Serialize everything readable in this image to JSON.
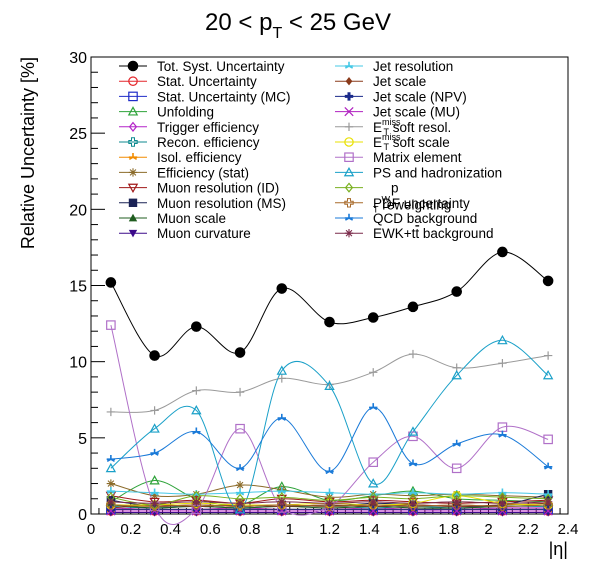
{
  "chart_data": {
    "type": "line",
    "title_main": "20 < p",
    "title_sub": "T",
    "title_rest": " < 25 GeV",
    "xlabel": "|η|",
    "ylabel": "Relative Uncertainty [%]",
    "xlim": [
      0,
      2.4
    ],
    "ylim": [
      0,
      30
    ],
    "x_ticks": [
      "0",
      "0.2",
      "0.4",
      "0.6",
      "0.8",
      "1",
      "1.2",
      "1.4",
      "1.6",
      "1.8",
      "2",
      "2.2",
      "2.4"
    ],
    "y_ticks": [
      "0",
      "5",
      "10",
      "15",
      "20",
      "25",
      "30"
    ],
    "x": [
      0.1,
      0.32,
      0.53,
      0.75,
      0.96,
      1.2,
      1.42,
      1.62,
      1.84,
      2.07,
      2.3
    ],
    "series": [
      {
        "name": "Tot. Syst. Uncertainty",
        "color": "#000000",
        "marker": "filled-circle",
        "values": [
          15.2,
          10.4,
          12.3,
          10.6,
          14.8,
          12.6,
          12.9,
          13.6,
          14.6,
          17.2,
          15.3
        ]
      },
      {
        "name": "Stat. Uncertainty",
        "color": "#e4252a",
        "marker": "open-circle",
        "values": [
          0.2,
          0.2,
          0.2,
          0.2,
          0.2,
          0.2,
          0.2,
          0.2,
          0.2,
          0.2,
          0.2
        ]
      },
      {
        "name": "Stat. Uncertainty (MC)",
        "color": "#1f2cc8",
        "marker": "open-square",
        "values": [
          0.3,
          0.3,
          0.3,
          0.3,
          0.3,
          0.3,
          0.3,
          0.3,
          0.3,
          0.3,
          0.3
        ]
      },
      {
        "name": "Unfolding",
        "color": "#2ea33a",
        "marker": "open-triangle",
        "values": [
          0.8,
          2.2,
          1.0,
          0.6,
          1.8,
          0.9,
          1.2,
          1.5,
          1.0,
          0.9,
          0.8
        ]
      },
      {
        "name": "Trigger efficiency",
        "color": "#b424c8",
        "marker": "open-diamond",
        "values": [
          0.4,
          0.3,
          0.3,
          0.4,
          0.3,
          0.3,
          0.4,
          0.3,
          0.3,
          0.4,
          0.4
        ]
      },
      {
        "name": "Recon. efficiency",
        "color": "#0e8a8f",
        "marker": "open-cross",
        "values": [
          0.5,
          0.4,
          0.5,
          0.4,
          0.5,
          0.5,
          0.4,
          0.5,
          0.4,
          0.5,
          0.5
        ]
      },
      {
        "name": "Isol. efficiency",
        "color": "#f28c00",
        "marker": "tri-star",
        "values": [
          0.3,
          0.3,
          0.3,
          0.3,
          0.3,
          0.3,
          0.3,
          0.3,
          0.3,
          0.3,
          0.3
        ]
      },
      {
        "name": "Efficiency (stat)",
        "color": "#8b6b2a",
        "marker": "asterisk",
        "values": [
          2.0,
          1.2,
          1.3,
          1.9,
          1.6,
          1.1,
          1.3,
          1.2,
          1.3,
          1.2,
          1.1
        ]
      },
      {
        "name": "Muon resolution (ID)",
        "color": "#a01818",
        "marker": "open-down-triangle",
        "values": [
          1.2,
          0.8,
          0.9,
          0.7,
          1.0,
          0.8,
          0.9,
          0.8,
          0.7,
          0.8,
          0.9
        ]
      },
      {
        "name": "Muon resolution (MS)",
        "color": "#1a2255",
        "marker": "filled-square",
        "values": [
          0.9,
          0.5,
          0.6,
          0.5,
          0.6,
          0.5,
          0.7,
          0.6,
          0.5,
          0.6,
          1.3
        ]
      },
      {
        "name": "Muon scale",
        "color": "#1f5c1f",
        "marker": "filled-triangle",
        "values": [
          0.6,
          0.4,
          0.5,
          0.4,
          0.5,
          0.4,
          0.5,
          0.4,
          0.4,
          0.5,
          0.6
        ]
      },
      {
        "name": "Muon curvature",
        "color": "#3b0a8a",
        "marker": "filled-down-triangle",
        "values": [
          0.1,
          0.1,
          0.1,
          0.1,
          0.1,
          0.1,
          0.1,
          0.1,
          0.1,
          0.1,
          0.1
        ]
      },
      {
        "name": "Jet resolution",
        "color": "#45c8e6",
        "marker": "tri-star",
        "values": [
          1.5,
          1.4,
          1.3,
          1.4,
          1.5,
          1.4,
          1.3,
          1.4,
          1.3,
          1.4,
          1.3
        ]
      },
      {
        "name": "Jet scale",
        "color": "#8a3a1a",
        "marker": "filled-diamond",
        "values": [
          0.4,
          0.6,
          0.5,
          0.6,
          0.5,
          0.6,
          0.5,
          0.6,
          0.5,
          0.6,
          0.7
        ]
      },
      {
        "name": "Jet scale (NPV)",
        "color": "#1a2a8a",
        "marker": "filled-cross",
        "values": [
          0.3,
          0.3,
          0.3,
          0.3,
          0.3,
          0.3,
          0.3,
          0.3,
          0.3,
          0.3,
          0.3
        ]
      },
      {
        "name": "Jet scale (MU)",
        "color": "#b020c0",
        "marker": "x-cross",
        "values": [
          0.2,
          0.2,
          0.2,
          0.2,
          0.2,
          0.2,
          0.2,
          0.2,
          0.2,
          0.2,
          0.2
        ]
      },
      {
        "name": "soft resol.",
        "color": "#9a9a9a",
        "marker": "plus",
        "values": [
          6.7,
          6.8,
          8.1,
          8.0,
          8.9,
          8.5,
          9.3,
          10.5,
          9.6,
          9.9,
          10.4
        ]
      },
      {
        "name": "soft scale",
        "color": "#e8e000",
        "marker": "open-circle",
        "values": [
          0.6,
          0.6,
          0.7,
          0.6,
          0.6,
          0.7,
          0.6,
          0.7,
          1.2,
          0.7,
          0.6
        ]
      },
      {
        "name": "Matrix element",
        "color": "#b070c8",
        "marker": "open-square",
        "values": [
          12.4,
          0.5,
          0.3,
          5.6,
          0.4,
          0.5,
          3.4,
          5.1,
          3.0,
          5.7,
          4.9
        ]
      },
      {
        "name": "PS and hadronization",
        "color": "#1aa0c8",
        "marker": "open-triangle",
        "values": [
          3.0,
          5.6,
          6.8,
          0.3,
          9.4,
          8.4,
          2.0,
          5.4,
          9.1,
          11.4,
          9.1
        ]
      },
      {
        "name": "reweighting",
        "color": "#7ab020",
        "marker": "open-diamond",
        "values": [
          1.1,
          0.6,
          1.2,
          1.0,
          1.1,
          0.9,
          1.1,
          1.0,
          1.2,
          1.1,
          1.0
        ]
      },
      {
        "name": "PDF uncertainty",
        "color": "#a86a2a",
        "marker": "open-cross",
        "values": [
          0.6,
          0.5,
          0.6,
          0.5,
          0.6,
          0.5,
          0.6,
          0.5,
          0.6,
          0.5,
          0.6
        ]
      },
      {
        "name": "QCD background",
        "color": "#1a7ad8",
        "marker": "tri-star",
        "values": [
          3.6,
          4.0,
          5.4,
          3.0,
          6.3,
          2.8,
          7.0,
          3.3,
          4.6,
          5.2,
          3.1
        ]
      },
      {
        "name": "background",
        "color": "#7a2a4a",
        "marker": "asterisk",
        "values": [
          0.8,
          0.7,
          0.8,
          0.7,
          0.8,
          0.7,
          0.8,
          0.7,
          0.8,
          0.7,
          0.8
        ]
      }
    ],
    "legend": {
      "placement": "top",
      "entries": [
        {
          "parts": [
            {
              "t": "Tot. Syst. Uncertainty"
            }
          ]
        },
        {
          "parts": [
            {
              "t": "Stat. Uncertainty"
            }
          ]
        },
        {
          "parts": [
            {
              "t": "Stat. Uncertainty (MC)"
            }
          ]
        },
        {
          "parts": [
            {
              "t": "Unfolding"
            }
          ]
        },
        {
          "parts": [
            {
              "t": "Trigger efficiency"
            }
          ]
        },
        {
          "parts": [
            {
              "t": "Recon. efficiency"
            }
          ]
        },
        {
          "parts": [
            {
              "t": "Isol. efficiency"
            }
          ]
        },
        {
          "parts": [
            {
              "t": "Efficiency (stat)"
            }
          ]
        },
        {
          "parts": [
            {
              "t": "Muon resolution (ID)"
            }
          ]
        },
        {
          "parts": [
            {
              "t": "Muon resolution (MS)"
            }
          ]
        },
        {
          "parts": [
            {
              "t": "Muon scale"
            }
          ]
        },
        {
          "parts": [
            {
              "t": "Muon curvature"
            }
          ]
        },
        {
          "parts": [
            {
              "t": "Jet resolution"
            }
          ]
        },
        {
          "parts": [
            {
              "t": "Jet scale"
            }
          ]
        },
        {
          "parts": [
            {
              "t": "Jet scale (NPV)"
            }
          ]
        },
        {
          "parts": [
            {
              "t": "Jet scale (MU)"
            }
          ]
        },
        {
          "parts": [
            {
              "t": "E"
            },
            {
              "t": "miss",
              "sup": true
            },
            {
              "t": "T",
              "sub": true
            },
            {
              "t": " soft resol."
            }
          ]
        },
        {
          "parts": [
            {
              "t": "E"
            },
            {
              "t": "miss",
              "sup": true
            },
            {
              "t": "T",
              "sub": true
            },
            {
              "t": " soft scale"
            }
          ]
        },
        {
          "parts": [
            {
              "t": "Matrix element"
            }
          ]
        },
        {
          "parts": [
            {
              "t": "PS and hadronization"
            }
          ]
        },
        {
          "parts": [
            {
              "t": "p"
            },
            {
              "t": "W",
              "sub": true
            },
            {
              "t": "T",
              "sub": true
            },
            {
              "t": " reweighting"
            }
          ]
        },
        {
          "parts": [
            {
              "t": "PDF uncertainty"
            }
          ]
        },
        {
          "parts": [
            {
              "t": "QCD background"
            }
          ]
        },
        {
          "parts": [
            {
              "t": "EWK+t"
            },
            {
              "t": "t",
              "over": true
            },
            {
              "t": " background"
            }
          ]
        }
      ]
    }
  }
}
